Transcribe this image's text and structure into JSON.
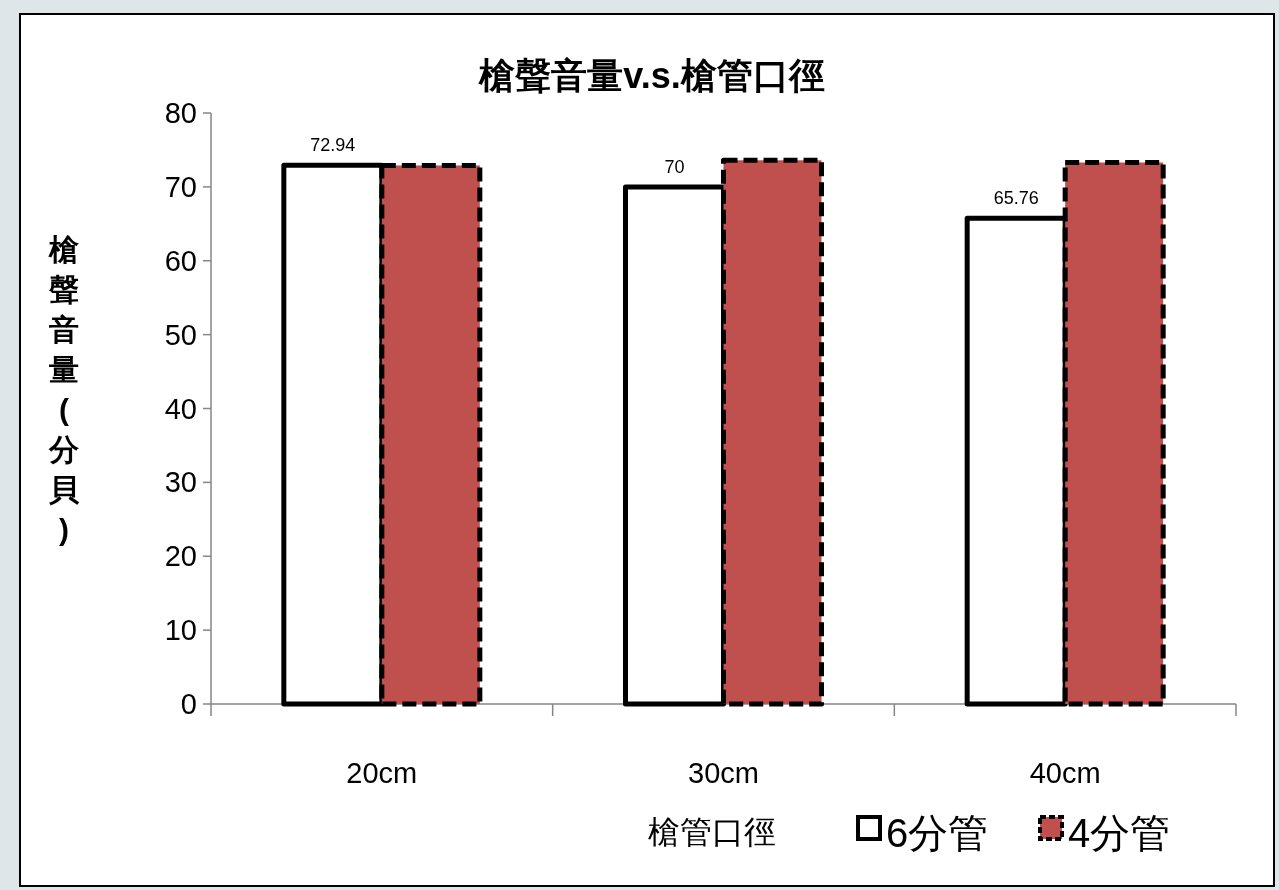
{
  "chart_data": {
    "type": "bar",
    "title": "槍聲音量v.s.槍管口徑",
    "xlabel": "槍管口徑",
    "ylabel": "槍聲音量(分貝)",
    "categories": [
      "20cm",
      "30cm",
      "40cm"
    ],
    "series": [
      {
        "name": "6分管",
        "color": "#ffffff",
        "line_style": "solid",
        "values": [
          72.94,
          70,
          65.76
        ],
        "value_labels": [
          "72.94",
          "70",
          "65.76"
        ]
      },
      {
        "name": "4分管",
        "color": "#c0504d",
        "line_style": "dashed",
        "values": [
          72.9,
          73.6,
          73.3
        ]
      }
    ],
    "ylim": [
      0,
      80
    ],
    "yticks": [
      0,
      10,
      20,
      30,
      40,
      50,
      60,
      70,
      80
    ],
    "legend": "bottom"
  }
}
